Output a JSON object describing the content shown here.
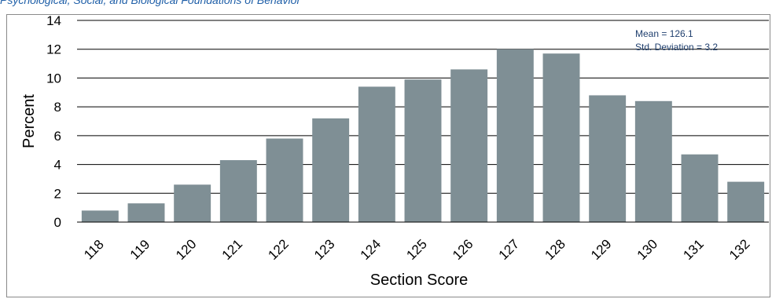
{
  "chart_data": {
    "type": "bar",
    "title": "Psychological, Social, and Biological Foundations of Behavior",
    "xlabel": "Section Score",
    "ylabel": "Percent",
    "categories": [
      "118",
      "119",
      "120",
      "121",
      "122",
      "123",
      "124",
      "125",
      "126",
      "127",
      "128",
      "129",
      "130",
      "131",
      "132"
    ],
    "values": [
      0.8,
      1.3,
      2.6,
      4.3,
      5.8,
      7.2,
      9.4,
      9.9,
      10.6,
      12.0,
      11.7,
      8.8,
      8.4,
      4.7,
      2.8
    ],
    "ylim": [
      0,
      14
    ],
    "yticks": [
      "0",
      "2",
      "4",
      "6",
      "8",
      "10",
      "12",
      "14"
    ],
    "grid": true,
    "bar_color": "#7f8f95",
    "annotations": {
      "mean": "Mean = 126.1",
      "std": "Std. Deviation = 3.2"
    }
  }
}
